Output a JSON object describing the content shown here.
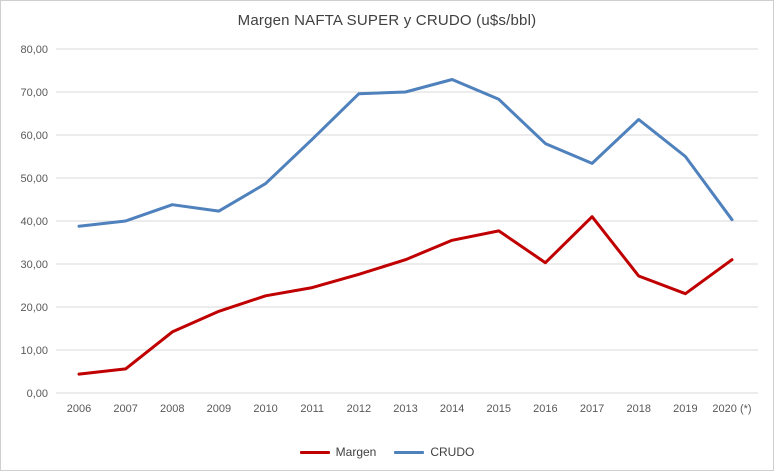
{
  "title": "Margen NAFTA SUPER y CRUDO (u$s/bbl)",
  "colors": {
    "title_text": "#404040",
    "axis_text": "#595959",
    "gridline": "#d9d9d9",
    "frame_border": "#d0cece",
    "margen_line": "#c00000",
    "crudo_line": "#4f81bd"
  },
  "chart_data": {
    "type": "line",
    "title": "Margen NAFTA SUPER y CRUDO (u$s/bbl)",
    "categories": [
      "2006",
      "2007",
      "2008",
      "2009",
      "2010",
      "2011",
      "2012",
      "2013",
      "2014",
      "2015",
      "2016",
      "2017",
      "2018",
      "2019",
      "2020 (*)"
    ],
    "series": [
      {
        "name": "Margen",
        "color": "#c00000",
        "values": [
          4.4,
          5.6,
          14.2,
          19.0,
          22.6,
          24.5,
          27.6,
          31.0,
          35.5,
          37.7,
          30.3,
          41.0,
          27.2,
          23.1,
          31.0
        ]
      },
      {
        "name": "CRUDO",
        "color": "#4f81bd",
        "values": [
          38.8,
          40.0,
          43.8,
          42.3,
          48.7,
          59.0,
          69.6,
          70.0,
          72.9,
          68.3,
          58.0,
          53.4,
          63.6,
          55.0,
          40.3
        ]
      }
    ],
    "ylim": [
      0,
      80
    ],
    "ytick_step": 10,
    "yticks": [
      "0,00",
      "10,00",
      "20,00",
      "30,00",
      "40,00",
      "50,00",
      "60,00",
      "70,00",
      "80,00"
    ],
    "grid": "horizontal-only",
    "legend_position": "bottom-center",
    "markers": "none"
  }
}
